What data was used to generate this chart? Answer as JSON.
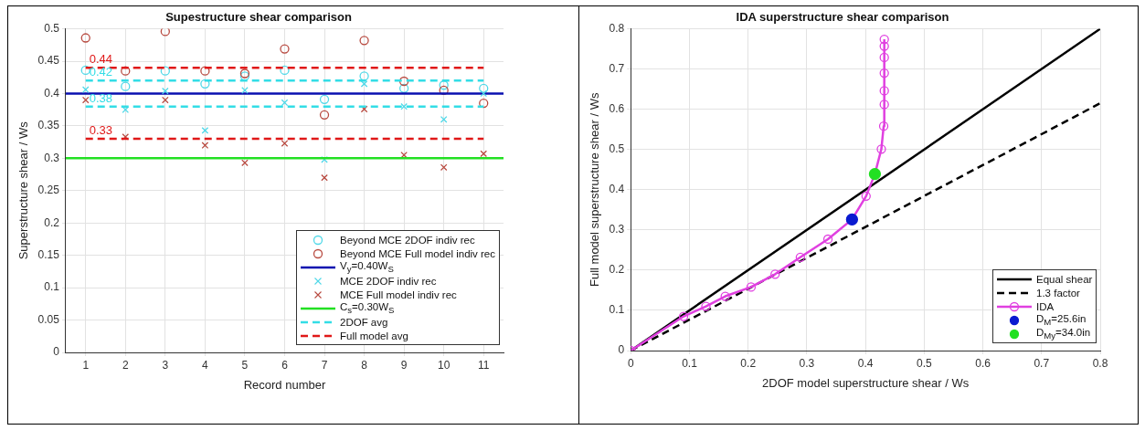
{
  "chart_data": [
    {
      "type": "scatter",
      "title": "Supestructure shear comparison",
      "xlabel": "Record number",
      "ylabel": "Superstructure shear / Ws",
      "xlim": [
        0.5,
        11.5
      ],
      "xticks": [
        1,
        2,
        3,
        4,
        5,
        6,
        7,
        8,
        9,
        10,
        11
      ],
      "ylim": [
        0,
        0.5
      ],
      "yticks": [
        0,
        0.05,
        0.1,
        0.15,
        0.2,
        0.25,
        0.3,
        0.35,
        0.4,
        0.45,
        0.5
      ],
      "grid": true,
      "legend": "bottom right",
      "x": [
        1,
        2,
        3,
        4,
        5,
        6,
        7,
        8,
        9,
        10,
        11
      ],
      "series": [
        {
          "name": "Beyond MCE 2DOF indiv rec",
          "type": "scatter",
          "marker": "circle",
          "color": "#4fd8e8",
          "values": [
            0.436,
            0.411,
            0.435,
            0.415,
            0.427,
            0.436,
            0.391,
            0.427,
            0.408,
            0.413,
            0.408
          ]
        },
        {
          "name": "Beyond MCE Full model indiv rec",
          "type": "scatter",
          "marker": "circle",
          "color": "#b84a40",
          "values": [
            0.486,
            0.435,
            0.496,
            0.435,
            0.431,
            0.469,
            0.367,
            0.482,
            0.419,
            0.405,
            0.385
          ]
        },
        {
          "name": "V$_{y}$=0.40W$_{S}$",
          "type": "line",
          "marker": "none",
          "line_style": "solid",
          "color": "#0a10b0",
          "x": [
            0.5,
            11.5
          ],
          "values": [
            0.4,
            0.4
          ]
        },
        {
          "name": "MCE 2DOF indiv rec",
          "type": "scatter",
          "marker": "cross",
          "color": "#4fd8e8",
          "values": [
            0.406,
            0.375,
            0.404,
            0.343,
            0.405,
            0.386,
            0.298,
            0.415,
            0.38,
            0.36,
            0.4
          ]
        },
        {
          "name": "MCE Full model indiv rec",
          "type": "scatter",
          "marker": "cross",
          "color": "#b84a40",
          "values": [
            0.39,
            0.333,
            0.39,
            0.32,
            0.293,
            0.323,
            0.27,
            0.376,
            0.305,
            0.286,
            0.307
          ]
        },
        {
          "name": "C$_{s}$=0.30W$_{S}$",
          "type": "line",
          "marker": "none",
          "line_style": "solid",
          "color": "#22e022",
          "x": [
            0.5,
            11.5
          ],
          "values": [
            0.3,
            0.3
          ]
        },
        {
          "name": "2DOF avg",
          "type": "line",
          "marker": "none",
          "line_style": "dashed",
          "color": "#33dde6",
          "x": [
            1,
            11
          ],
          "values": [
            0.42,
            0.42
          ],
          "value_labels": [
            "0.42",
            null
          ]
        },
        {
          "type": "line",
          "marker": "none",
          "line_style": "dashed",
          "color": "#33dde6",
          "x": [
            1,
            11
          ],
          "values": [
            0.38,
            0.38
          ],
          "value_labels": [
            "0.38",
            null
          ]
        },
        {
          "name": "Full model avg",
          "type": "line",
          "marker": "none",
          "line_style": "dashed",
          "color": "#e01818",
          "x": [
            1,
            11
          ],
          "values": [
            0.44,
            0.44
          ],
          "value_labels": [
            "0.44",
            null
          ]
        },
        {
          "type": "line",
          "marker": "none",
          "line_style": "dashed",
          "color": "#e01818",
          "x": [
            1,
            11
          ],
          "values": [
            0.33,
            0.33
          ],
          "value_labels": [
            "0.33",
            null
          ]
        }
      ]
    },
    {
      "type": "line",
      "title": "IDA superstructure shear comparison",
      "xlabel": "2DOF model superstructure shear / Ws",
      "ylabel": "Full model superstructure shear / Ws",
      "xlim": [
        0,
        0.8
      ],
      "xticks": [
        0,
        0.1,
        0.2,
        0.3,
        0.4,
        0.5,
        0.6,
        0.7,
        0.8
      ],
      "ylim": [
        0,
        0.8
      ],
      "yticks": [
        0,
        0.1,
        0.2,
        0.3,
        0.4,
        0.5,
        0.6,
        0.7,
        0.8
      ],
      "grid": true,
      "legend": "bottom right",
      "series": [
        {
          "name": "Equal shear",
          "type": "line",
          "marker": "none",
          "line_style": "solid",
          "color": "#000000",
          "x": [
            0,
            0.8
          ],
          "values": [
            0,
            0.8
          ]
        },
        {
          "name": "1.3 factor",
          "type": "line",
          "marker": "none",
          "line_style": "dashed",
          "color": "#000000",
          "x": [
            0,
            0.8
          ],
          "values": [
            0,
            0.615
          ]
        },
        {
          "name": "IDA",
          "type": "line",
          "marker": "circle",
          "line_style": "solid",
          "color": "#e040e0",
          "x": [
            0,
            0.09,
            0.128,
            0.161,
            0.205,
            0.246,
            0.289,
            0.336,
            0.377,
            0.401,
            0.416,
            0.427,
            0.431,
            0.432,
            0.432,
            0.432,
            0.432,
            0.432,
            0.432
          ],
          "values": [
            0,
            0.085,
            0.11,
            0.135,
            0.158,
            0.19,
            0.232,
            0.277,
            0.326,
            0.384,
            0.439,
            0.501,
            0.558,
            0.612,
            0.646,
            0.69,
            0.729,
            0.757,
            0.774
          ]
        },
        {
          "name": "D$_{M}$=25.6in",
          "type": "scatter",
          "marker": "circle",
          "color": "#0a1ad0",
          "x": [
            0.377
          ],
          "values": [
            0.326
          ]
        },
        {
          "name": "D$_{My}$=34.0in",
          "type": "scatter",
          "marker": "circle",
          "color": "#22e022",
          "x": [
            0.416
          ],
          "values": [
            0.439
          ]
        }
      ]
    }
  ]
}
